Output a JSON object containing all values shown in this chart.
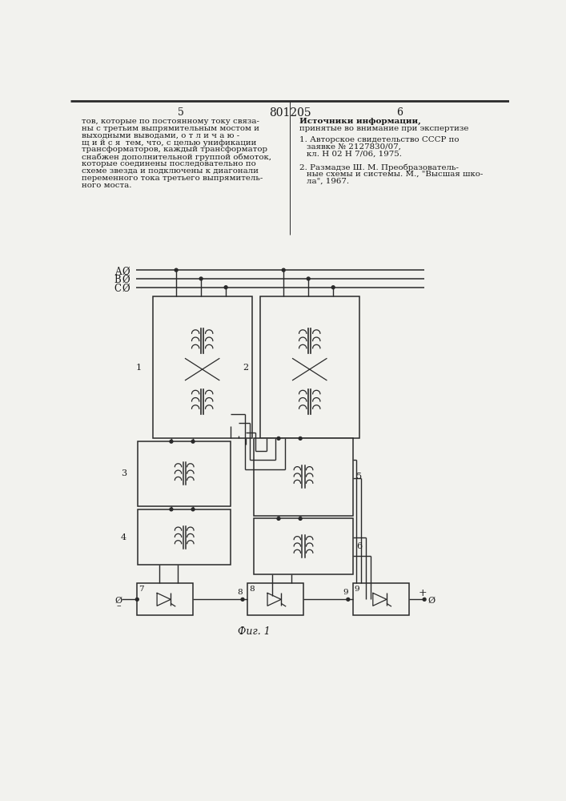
{
  "page_number_left": "5",
  "page_number_center": "801205",
  "page_number_right": "6",
  "text_left_lines": [
    "тов, которые по постоянному току связа-",
    "ны с третьим выпрямительным мостом и",
    "выходными выводами, о т л и ч а ю -",
    "щ и й с я  тем, что, с целью унификации",
    "трансформаторов, каждый трансформатор",
    "снабжен дополнительной группой обмоток,",
    "которые соединены последовательно по",
    "схеме звезда и подключены к диагонали",
    "переменного тока третьего выпрямитель-",
    "ного моста."
  ],
  "text_right_title": "Источники информации,",
  "text_right_sub": "принятые во внимание при экспертизе",
  "ref1_lines": [
    "1. Авторское свидетельство СССР по",
    "заявке № 2127830/07,",
    "кл. Н 02 Н 7/06, 1975."
  ],
  "ref2_lines": [
    "2. Размадзе Ш. М. Преобразователь-",
    "ные схемы и системы. М., \"Высшая шко-",
    "ла\", 1967."
  ],
  "fig_label": "Фиг. 1",
  "bg_color": "#f2f2ee",
  "line_color": "#2a2a2a",
  "text_color": "#1a1a1a"
}
